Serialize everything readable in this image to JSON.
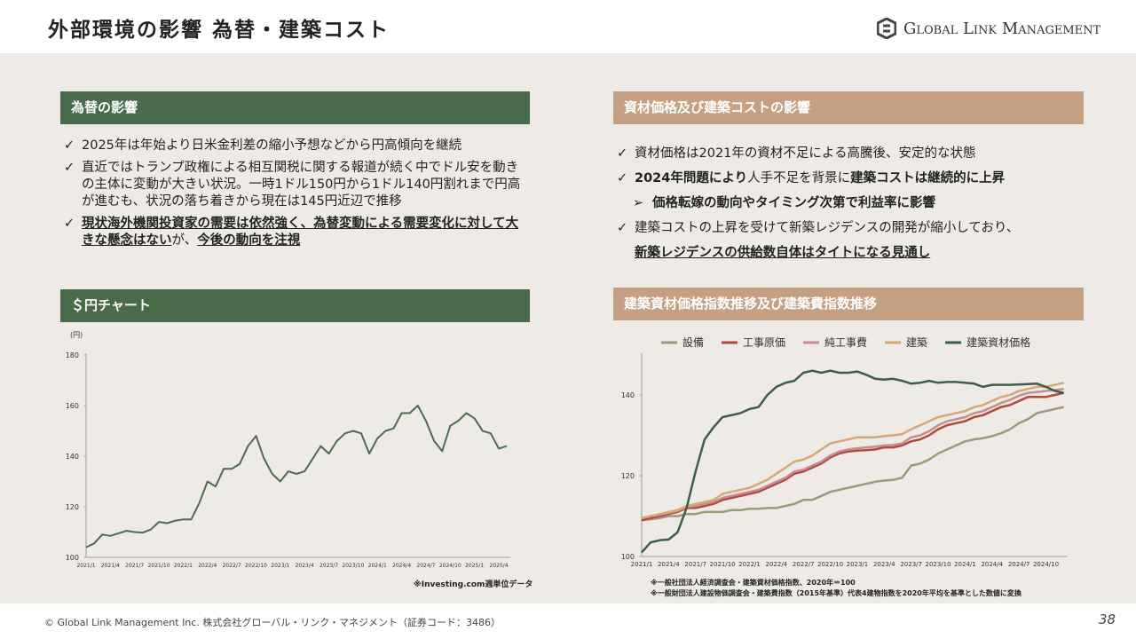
{
  "header": {
    "title": "外部環境の影響 為替・建築コスト",
    "logo": "Global Link Management"
  },
  "left": {
    "heading": "為替の影響",
    "bullets": [
      [
        "2025年は年始より日米金利差の縮小予想などから円高傾向を継続"
      ],
      [
        "直近ではトランプ政権による相互関税に関する報道が続く中でドル安を動きの主体に変動が大きい状況。一時1ドル150円から1ドル140円割れまで円高が進むも、状況の落ち着きから現在は145円近辺で推移"
      ],
      [
        "現状海外機関投資家の需要は依然強く、為替変動による需要変化に対して大きな懸念はない",
        "が、",
        "今後の動向を注視"
      ]
    ],
    "chart_heading": "＄円チャート",
    "note": "※Investing.com週単位データ"
  },
  "right": {
    "heading": "資材価格及び建築コストの影響",
    "bullets": [
      [
        "資材価格は2021年の資材不足による高騰後、安定的な状態"
      ],
      [
        "2024年問題により",
        "人手不足を背景に",
        "建築コストは継続的に上昇"
      ],
      [
        "価格転嫁の動向やタイミング次第で利益率に影響"
      ],
      [
        "建築コストの上昇を受けて新築レジデンスの開発が縮小しており、"
      ],
      [
        "新築レジデンスの供給数自体はタイトになる見通し"
      ]
    ],
    "chart_heading": "建築資材価格指数推移及び建築費指数推移",
    "notes": [
      "※一般社団法人経済調査会・建築資材価格指数、2020年＝100",
      "※一般財団法人建設物価調査会・建築費指数（2015年基準）代表4建物指数を2020年平均を基準とした数値に変換"
    ]
  },
  "footer": {
    "copyright": "© Global Link Management Inc. 株式会社グローバル・リンク・マネジメント（証券コード：3486）",
    "page": "38"
  },
  "chart_data": [
    {
      "type": "line",
      "y_label": "(円)",
      "ylim": [
        100,
        180
      ],
      "yticks": [
        100,
        120,
        140,
        160,
        180
      ],
      "categories": [
        "2021/1",
        null,
        null,
        "2021/4",
        null,
        null,
        "2021/7",
        null,
        null,
        "2021/10",
        null,
        null,
        "2022/1",
        null,
        null,
        "2022/4",
        null,
        null,
        "2022/7",
        null,
        null,
        "2022/10",
        null,
        null,
        "2023/1",
        null,
        null,
        "2023/4",
        null,
        null,
        "2023/7",
        null,
        null,
        "2023/10",
        null,
        null,
        "2024/1",
        null,
        null,
        "2024/4",
        null,
        null,
        "2024/7",
        null,
        null,
        "2024/10",
        null,
        null,
        "2025/1",
        null,
        null,
        "2025/4",
        null
      ],
      "series": [
        {
          "name": null,
          "color": "#4e6b4f",
          "values": [
            104,
            105.5,
            109,
            108.5,
            109.5,
            110.5,
            110,
            109.8,
            111,
            114,
            113.5,
            114.5,
            115,
            115,
            121.5,
            130,
            128,
            135,
            135,
            137,
            144,
            148,
            139,
            133,
            130,
            134,
            133,
            134,
            139,
            144,
            141,
            146,
            149,
            150,
            149,
            141,
            147,
            150,
            151,
            157,
            157,
            160,
            154,
            146,
            142,
            152,
            154,
            157,
            155,
            150,
            149,
            143,
            144
          ]
        }
      ]
    },
    {
      "type": "line",
      "ylim": [
        100,
        150
      ],
      "yticks": [
        100,
        120,
        140
      ],
      "categories": [
        "2021/1",
        null,
        null,
        "2021/4",
        null,
        null,
        "2021/7",
        null,
        null,
        "2021/10",
        null,
        null,
        "2022/1",
        null,
        null,
        "2022/4",
        null,
        null,
        "2022/7",
        null,
        null,
        "2022/10",
        null,
        null,
        "2023/1",
        null,
        null,
        "2023/4",
        null,
        null,
        "2023/7",
        null,
        null,
        "2023/10",
        null,
        null,
        "2024/1",
        null,
        null,
        "2024/4",
        null,
        null,
        "2024/7",
        null,
        null,
        "2024/10",
        null,
        null
      ],
      "series": [
        {
          "name": "設備",
          "color": "#9c9a7a",
          "values": [
            109,
            109.2,
            109.5,
            110,
            110,
            110.5,
            110.5,
            111,
            111,
            111,
            111.5,
            111.5,
            111.8,
            111.8,
            112,
            112,
            112.5,
            113,
            114,
            114,
            115,
            116,
            116.5,
            117,
            117.5,
            118,
            118.5,
            118.8,
            119,
            119.5,
            122.5,
            123,
            124,
            125.5,
            126.5,
            127.5,
            128.5,
            129,
            129.3,
            129.8,
            130.5,
            131.5,
            133,
            134,
            135.5,
            136,
            136.5,
            137
          ]
        },
        {
          "name": "工事原価",
          "color": "#b04a3e",
          "values": [
            109,
            109.5,
            110,
            110.5,
            111,
            112,
            112,
            112.5,
            113,
            114,
            114.5,
            115,
            115.5,
            116,
            117,
            118,
            119,
            120.5,
            121,
            122,
            123,
            124.5,
            125.5,
            126,
            126.2,
            126.3,
            126.5,
            127,
            127,
            127.5,
            128.5,
            129,
            130,
            131.5,
            132.5,
            133,
            133.5,
            134.5,
            135,
            136,
            137,
            137.5,
            138.5,
            139.5,
            139.5,
            139.5,
            140,
            140.5
          ]
        },
        {
          "name": "純工事費",
          "color": "#c48e8e",
          "values": [
            109.5,
            110,
            110.3,
            110.8,
            111.3,
            112.3,
            112.5,
            113,
            113.5,
            114.5,
            115,
            115.5,
            116,
            116.5,
            117.5,
            118.5,
            119.5,
            121,
            121.5,
            122.5,
            123.5,
            125,
            126,
            126.5,
            126.8,
            127,
            127.2,
            127.5,
            127.6,
            128,
            129.5,
            130,
            131,
            132.5,
            133.5,
            134,
            134.5,
            135.5,
            136,
            137,
            138,
            138.8,
            139.8,
            140.5,
            140.7,
            141,
            141.2,
            141.5
          ]
        },
        {
          "name": "建築",
          "color": "#d6a878",
          "values": [
            109.5,
            110,
            110.5,
            111,
            111.5,
            112.5,
            113,
            113.5,
            114,
            115.5,
            116,
            116.5,
            117,
            118,
            119,
            120.5,
            122,
            123.5,
            124,
            125,
            126.5,
            128,
            128.5,
            129,
            129.5,
            129.5,
            129.5,
            129.8,
            130,
            130.3,
            131.5,
            132.5,
            133.5,
            134.5,
            135,
            135.5,
            136,
            137,
            137.5,
            138.5,
            139.5,
            140,
            141,
            141.5,
            142,
            142,
            142.5,
            143
          ]
        },
        {
          "name": "建築資材価格",
          "color": "#3e5e45",
          "values": [
            101,
            103.5,
            104,
            104.2,
            106,
            112,
            121,
            129,
            132,
            134.5,
            135,
            135.5,
            136.5,
            137,
            140,
            142,
            143,
            143.5,
            145.5,
            146,
            145.5,
            146,
            145.5,
            145.5,
            145.8,
            145,
            144,
            143.8,
            144,
            143.5,
            142.8,
            143,
            143.5,
            143,
            143.2,
            143.2,
            143,
            142.8,
            142,
            142.5,
            142.5,
            142.5,
            142.6,
            142.7,
            142.8,
            142,
            141,
            140.5
          ]
        }
      ]
    }
  ]
}
